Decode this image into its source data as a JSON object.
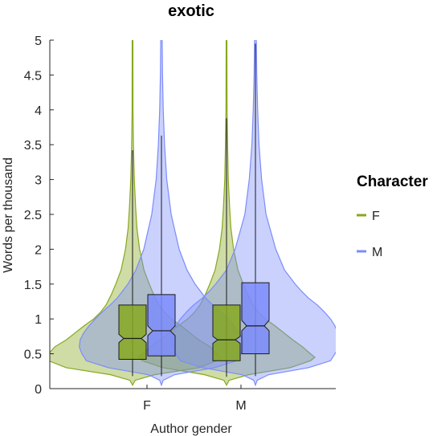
{
  "chart_data": {
    "type": "violin",
    "title": "exotic",
    "xlabel": "Author gender",
    "ylabel": "Words per thousand",
    "categories": [
      "F",
      "M"
    ],
    "ylim": [
      0,
      5
    ],
    "yticks": [
      "0",
      "0.5",
      "1",
      "1.5",
      "2",
      "2.5",
      "3",
      "3.5",
      "4",
      "4.5",
      "5"
    ],
    "legend": {
      "title": "Character",
      "position": "right"
    },
    "series": [
      {
        "name": "F",
        "color": "#86a81e",
        "groups": [
          {
            "category": "F",
            "q1": 0.42,
            "median": 0.72,
            "q3": 1.2,
            "notch_low": 0.66,
            "notch_high": 0.78,
            "whisker_low": 0.18,
            "whisker_high": 3.42,
            "max": 5.0,
            "density": [
              [
                0.05,
                0.0
              ],
              [
                0.12,
                0.03
              ],
              [
                0.2,
                0.25
              ],
              [
                0.3,
                0.75
              ],
              [
                0.4,
                0.95
              ],
              [
                0.45,
                1.0
              ],
              [
                0.5,
                0.95
              ],
              [
                0.6,
                0.88
              ],
              [
                0.7,
                0.75
              ],
              [
                0.8,
                0.65
              ],
              [
                0.9,
                0.55
              ],
              [
                1.0,
                0.44
              ],
              [
                1.1,
                0.36
              ],
              [
                1.2,
                0.3
              ],
              [
                1.35,
                0.24
              ],
              [
                1.5,
                0.19
              ],
              [
                1.7,
                0.13
              ],
              [
                2.0,
                0.08
              ],
              [
                2.3,
                0.05
              ],
              [
                2.6,
                0.035
              ],
              [
                3.0,
                0.02
              ],
              [
                3.5,
                0.01
              ],
              [
                4.0,
                0.005
              ],
              [
                5.0,
                0.004
              ]
            ]
          },
          {
            "category": "M",
            "q1": 0.4,
            "median": 0.7,
            "q3": 1.2,
            "notch_low": 0.65,
            "notch_high": 0.75,
            "whisker_low": 0.17,
            "whisker_high": 3.88,
            "max": 5.0,
            "density": [
              [
                0.05,
                0.0
              ],
              [
                0.12,
                0.03
              ],
              [
                0.2,
                0.25
              ],
              [
                0.3,
                0.72
              ],
              [
                0.4,
                0.95
              ],
              [
                0.45,
                1.0
              ],
              [
                0.5,
                0.95
              ],
              [
                0.6,
                0.86
              ],
              [
                0.7,
                0.75
              ],
              [
                0.8,
                0.65
              ],
              [
                0.9,
                0.55
              ],
              [
                1.0,
                0.44
              ],
              [
                1.1,
                0.36
              ],
              [
                1.2,
                0.3
              ],
              [
                1.35,
                0.24
              ],
              [
                1.5,
                0.19
              ],
              [
                1.7,
                0.13
              ],
              [
                2.0,
                0.08
              ],
              [
                2.3,
                0.05
              ],
              [
                2.6,
                0.035
              ],
              [
                3.0,
                0.02
              ],
              [
                3.5,
                0.012
              ],
              [
                4.0,
                0.006
              ],
              [
                5.0,
                0.004
              ]
            ]
          }
        ]
      },
      {
        "name": "M",
        "color": "#7b8cfb",
        "groups": [
          {
            "category": "F",
            "q1": 0.47,
            "median": 0.83,
            "q3": 1.35,
            "notch_low": 0.76,
            "notch_high": 0.9,
            "whisker_low": 0.18,
            "whisker_high": 3.63,
            "max": 5.0,
            "density": [
              [
                0.05,
                0.0
              ],
              [
                0.12,
                0.02
              ],
              [
                0.2,
                0.15
              ],
              [
                0.3,
                0.6
              ],
              [
                0.4,
                0.85
              ],
              [
                0.5,
                0.9
              ],
              [
                0.6,
                0.93
              ],
              [
                0.7,
                0.92
              ],
              [
                0.8,
                0.88
              ],
              [
                0.9,
                0.82
              ],
              [
                1.0,
                0.75
              ],
              [
                1.1,
                0.67
              ],
              [
                1.2,
                0.58
              ],
              [
                1.3,
                0.5
              ],
              [
                1.5,
                0.38
              ],
              [
                1.7,
                0.29
              ],
              [
                2.0,
                0.2
              ],
              [
                2.5,
                0.11
              ],
              [
                3.0,
                0.06
              ],
              [
                3.5,
                0.035
              ],
              [
                4.0,
                0.02
              ],
              [
                4.5,
                0.012
              ],
              [
                5.0,
                0.008
              ]
            ]
          },
          {
            "category": "M",
            "q1": 0.5,
            "median": 0.9,
            "q3": 1.52,
            "notch_low": 0.83,
            "notch_high": 0.98,
            "whisker_low": 0.18,
            "whisker_high": 4.95,
            "max": 5.0,
            "density": [
              [
                0.05,
                0.0
              ],
              [
                0.12,
                0.02
              ],
              [
                0.2,
                0.15
              ],
              [
                0.3,
                0.6
              ],
              [
                0.4,
                0.85
              ],
              [
                0.5,
                0.9
              ],
              [
                0.6,
                0.95
              ],
              [
                0.7,
                0.96
              ],
              [
                0.8,
                0.93
              ],
              [
                0.9,
                0.9
              ],
              [
                1.0,
                0.85
              ],
              [
                1.1,
                0.78
              ],
              [
                1.2,
                0.7
              ],
              [
                1.3,
                0.6
              ],
              [
                1.4,
                0.52
              ],
              [
                1.5,
                0.45
              ],
              [
                1.7,
                0.33
              ],
              [
                2.0,
                0.23
              ],
              [
                2.5,
                0.12
              ],
              [
                3.0,
                0.07
              ],
              [
                3.5,
                0.04
              ],
              [
                4.0,
                0.025
              ],
              [
                4.5,
                0.015
              ],
              [
                5.0,
                0.01
              ]
            ]
          }
        ]
      }
    ]
  }
}
